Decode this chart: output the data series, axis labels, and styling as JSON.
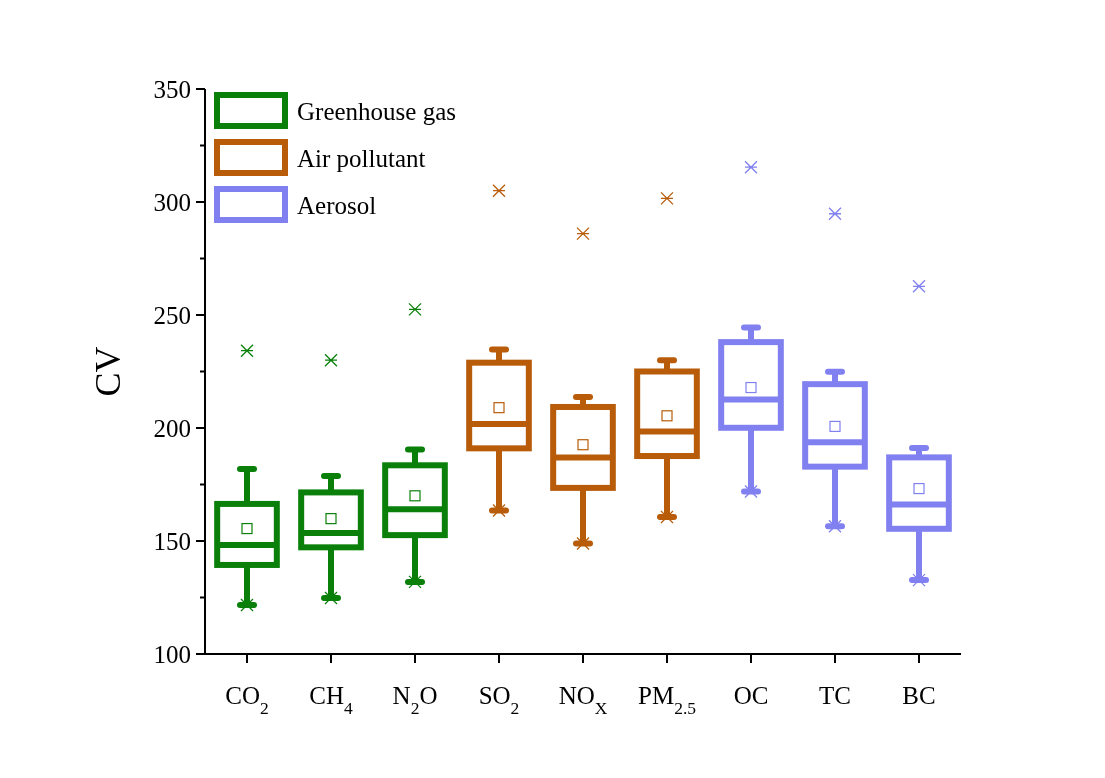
{
  "chart_data": {
    "type": "box",
    "ylabel": "CV",
    "categories": [
      "CO$_{2}$",
      "CH$_{4}$",
      "N$_{2}$O",
      "SO$_{2}$",
      "NO$_{X}$",
      "PM$_{2.5}$",
      "OC",
      "TC",
      "BC"
    ],
    "ylim": [
      100,
      350
    ],
    "yticks": [
      100,
      {
        "value": 125,
        "label": null
      },
      150,
      {
        "value": 175,
        "label": null
      },
      200,
      {
        "value": 225,
        "label": null
      },
      250,
      {
        "value": 275,
        "label": null
      },
      300,
      {
        "value": 325,
        "label": null
      },
      350
    ],
    "grid": false,
    "legend": "top left",
    "marker": "cross",
    "series": [
      {
        "name": "Greenhouse gas",
        "color": "#0a800a",
        "boxes": [
          {
            "low": 121.7,
            "q1": 139.4,
            "median": 148.2,
            "q3": 166.4,
            "high": 181.9,
            "mean": 155.5,
            "outliers": [
              234.2
            ]
          },
          {
            "low": 124.8,
            "q1": 147.2,
            "median": 153.5,
            "q3": 171.5,
            "high": 178.8,
            "mean": 159.9,
            "outliers": [
              230
            ]
          },
          {
            "low": 131.9,
            "q1": 152.6,
            "median": 164,
            "q3": 183.5,
            "high": 190.5,
            "mean": 170,
            "outliers": [
              252.5
            ]
          },
          null,
          null,
          null,
          null,
          null,
          null
        ]
      },
      {
        "name": "Air pollutant",
        "color": "#b85c0a",
        "boxes": [
          null,
          null,
          null,
          {
            "low": 163.5,
            "q1": 191,
            "median": 201.8,
            "q3": 228.9,
            "high": 234.7,
            "mean": 209,
            "outliers": [
              305
            ]
          },
          {
            "low": 148.9,
            "q1": 173.5,
            "median": 187,
            "q3": 209.3,
            "high": 213.7,
            "mean": 192.6,
            "outliers": [
              286
            ]
          },
          {
            "low": 160.6,
            "q1": 187.6,
            "median": 198.5,
            "q3": 225,
            "high": 230,
            "mean": 205.4,
            "outliers": [
              301.6
            ]
          },
          null,
          null,
          null
        ]
      },
      {
        "name": "Aerosol",
        "color": "#8080f0",
        "boxes": [
          null,
          null,
          null,
          null,
          null,
          null,
          {
            "low": 171.9,
            "q1": 200.1,
            "median": 212.6,
            "q3": 238,
            "high": 244.5,
            "mean": 217.9,
            "outliers": [
              315.4
            ]
          },
          {
            "low": 156.5,
            "q1": 182.9,
            "median": 193.7,
            "q3": 219.4,
            "high": 224.9,
            "mean": 200.7,
            "outliers": [
              294.8
            ]
          },
          {
            "low": 132.7,
            "q1": 155.4,
            "median": 166.2,
            "q3": 187,
            "high": 191.2,
            "mean": 173.2,
            "outliers": [
              262.7
            ]
          }
        ]
      }
    ]
  }
}
